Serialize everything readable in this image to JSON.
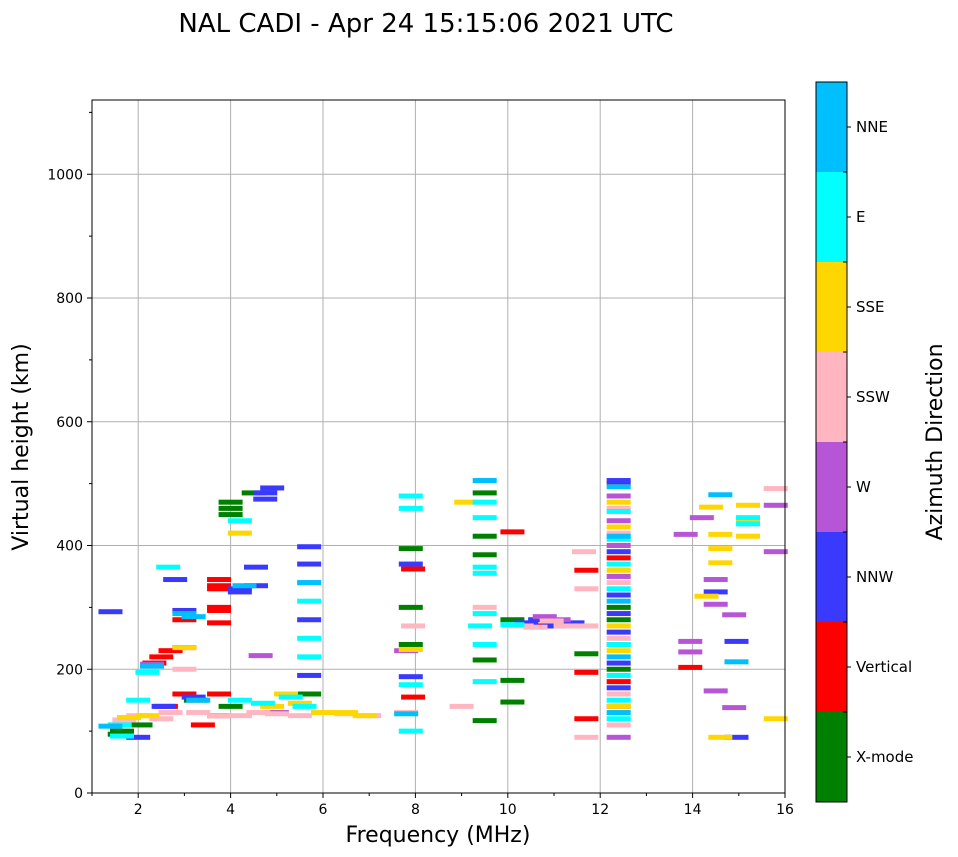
{
  "chart_data": {
    "type": "scatter",
    "title": "NAL CADI - Apr 24 15:15:06 2021 UTC",
    "xlabel": "Frequency (MHz)",
    "ylabel": "Virtual height (km)",
    "xlim": [
      1,
      16
    ],
    "ylim": [
      0,
      1120
    ],
    "xticks": [
      2,
      4,
      6,
      8,
      10,
      12,
      14,
      16
    ],
    "yticks": [
      0,
      200,
      400,
      600,
      800,
      1000
    ],
    "grid": true,
    "colorbar": {
      "label": "Azimuth Direction",
      "categories": [
        {
          "name": "X-mode",
          "color": "#008000"
        },
        {
          "name": "Vertical",
          "color": "#ff0000"
        },
        {
          "name": "NNW",
          "color": "#3a3aff"
        },
        {
          "name": "W",
          "color": "#b656d6"
        },
        {
          "name": "SSW",
          "color": "#ffb6c1"
        },
        {
          "name": "SSE",
          "color": "#ffd700"
        },
        {
          "name": "E",
          "color": "#00ffff"
        },
        {
          "name": "NNE",
          "color": "#00bfff"
        }
      ]
    },
    "series": [
      {
        "name": "X-mode",
        "points": [
          [
            1.6,
            95
          ],
          [
            1.65,
            100
          ],
          [
            2.05,
            110
          ],
          [
            3.25,
            150
          ],
          [
            4.0,
            470
          ],
          [
            4.0,
            460
          ],
          [
            4.0,
            450
          ],
          [
            4.0,
            140
          ],
          [
            4.5,
            485
          ],
          [
            5.7,
            160
          ],
          [
            7.9,
            395
          ],
          [
            7.9,
            300
          ],
          [
            7.9,
            240
          ],
          [
            9.5,
            485
          ],
          [
            9.5,
            415
          ],
          [
            9.5,
            385
          ],
          [
            9.5,
            215
          ],
          [
            9.5,
            117
          ],
          [
            10.1,
            280
          ],
          [
            10.1,
            182
          ],
          [
            10.1,
            147
          ],
          [
            11.7,
            225
          ],
          [
            12.4,
            300
          ],
          [
            12.4,
            280
          ],
          [
            12.4,
            200
          ]
        ]
      },
      {
        "name": "Vertical",
        "points": [
          [
            2.35,
            210
          ],
          [
            2.5,
            220
          ],
          [
            2.7,
            230
          ],
          [
            3.0,
            235
          ],
          [
            3.0,
            280
          ],
          [
            3.4,
            110
          ],
          [
            3.75,
            345
          ],
          [
            3.75,
            335
          ],
          [
            3.75,
            330
          ],
          [
            3.75,
            300
          ],
          [
            3.75,
            295
          ],
          [
            3.75,
            275
          ],
          [
            3.75,
            160
          ],
          [
            3.75,
            125
          ],
          [
            3.0,
            160
          ],
          [
            2.6,
            140
          ],
          [
            7.95,
            362
          ],
          [
            7.95,
            155
          ],
          [
            10.1,
            422
          ],
          [
            10.9,
            270
          ],
          [
            11.7,
            360
          ],
          [
            11.7,
            195
          ],
          [
            11.7,
            120
          ],
          [
            12.4,
            500
          ],
          [
            12.4,
            380
          ],
          [
            12.4,
            180
          ],
          [
            13.95,
            203
          ]
        ]
      },
      {
        "name": "NNW",
        "points": [
          [
            1.4,
            293
          ],
          [
            2.0,
            90
          ],
          [
            2.55,
            140
          ],
          [
            2.8,
            345
          ],
          [
            3.0,
            295
          ],
          [
            3.2,
            155
          ],
          [
            4.2,
            330
          ],
          [
            4.2,
            325
          ],
          [
            4.55,
            365
          ],
          [
            4.55,
            335
          ],
          [
            4.75,
            475
          ],
          [
            4.75,
            485
          ],
          [
            4.9,
            493
          ],
          [
            5.7,
            398
          ],
          [
            5.7,
            370
          ],
          [
            5.7,
            280
          ],
          [
            5.7,
            190
          ],
          [
            7.9,
            370
          ],
          [
            7.9,
            188
          ],
          [
            10.4,
            275
          ],
          [
            10.7,
            280
          ],
          [
            11.0,
            270
          ],
          [
            11.4,
            275
          ],
          [
            12.4,
            505
          ],
          [
            12.4,
            390
          ],
          [
            12.4,
            320
          ],
          [
            12.4,
            290
          ],
          [
            12.4,
            260
          ],
          [
            12.4,
            210
          ],
          [
            12.4,
            170
          ],
          [
            14.5,
            325
          ],
          [
            14.95,
            245
          ],
          [
            14.95,
            90
          ]
        ]
      },
      {
        "name": "W",
        "points": [
          [
            2.3,
            208
          ],
          [
            4.65,
            222
          ],
          [
            5.0,
            130
          ],
          [
            7.8,
            230
          ],
          [
            10.8,
            285
          ],
          [
            11.1,
            280
          ],
          [
            12.4,
            480
          ],
          [
            12.4,
            440
          ],
          [
            12.4,
            400
          ],
          [
            12.4,
            350
          ],
          [
            12.4,
            240
          ],
          [
            12.4,
            140
          ],
          [
            12.4,
            90
          ],
          [
            13.85,
            418
          ],
          [
            13.95,
            245
          ],
          [
            13.95,
            228
          ],
          [
            14.2,
            445
          ],
          [
            14.5,
            345
          ],
          [
            14.5,
            305
          ],
          [
            14.5,
            165
          ],
          [
            14.9,
            288
          ],
          [
            14.9,
            138
          ],
          [
            15.8,
            390
          ],
          [
            15.8,
            465
          ]
        ]
      },
      {
        "name": "SSW",
        "points": [
          [
            1.7,
            118
          ],
          [
            2.0,
            125
          ],
          [
            2.5,
            120
          ],
          [
            2.7,
            130
          ],
          [
            3.0,
            200
          ],
          [
            3.3,
            130
          ],
          [
            3.75,
            125
          ],
          [
            4.2,
            125
          ],
          [
            4.6,
            130
          ],
          [
            5.0,
            128
          ],
          [
            5.5,
            125
          ],
          [
            6.0,
            130
          ],
          [
            6.5,
            128
          ],
          [
            7.0,
            125
          ],
          [
            7.8,
            130
          ],
          [
            7.95,
            270
          ],
          [
            9.0,
            140
          ],
          [
            9.5,
            300
          ],
          [
            10.3,
            270
          ],
          [
            10.6,
            268
          ],
          [
            10.95,
            278
          ],
          [
            11.25,
            270
          ],
          [
            11.65,
            390
          ],
          [
            11.7,
            330
          ],
          [
            11.7,
            270
          ],
          [
            11.7,
            90
          ],
          [
            12.4,
            460
          ],
          [
            12.4,
            420
          ],
          [
            12.4,
            340
          ],
          [
            12.4,
            250
          ],
          [
            12.4,
            160
          ],
          [
            12.4,
            110
          ],
          [
            15.8,
            492
          ]
        ]
      },
      {
        "name": "SSE",
        "points": [
          [
            1.8,
            122
          ],
          [
            2.2,
            125
          ],
          [
            3.0,
            235
          ],
          [
            4.2,
            420
          ],
          [
            4.9,
            140
          ],
          [
            5.2,
            160
          ],
          [
            5.5,
            145
          ],
          [
            6.0,
            130
          ],
          [
            6.5,
            130
          ],
          [
            6.9,
            125
          ],
          [
            7.9,
            232
          ],
          [
            9.1,
            470
          ],
          [
            12.4,
            470
          ],
          [
            12.4,
            430
          ],
          [
            12.4,
            360
          ],
          [
            12.4,
            270
          ],
          [
            12.4,
            230
          ],
          [
            12.4,
            140
          ],
          [
            14.3,
            318
          ],
          [
            14.4,
            462
          ],
          [
            14.6,
            418
          ],
          [
            14.6,
            395
          ],
          [
            14.6,
            372
          ],
          [
            14.6,
            90
          ],
          [
            15.2,
            465
          ],
          [
            15.2,
            440
          ],
          [
            15.2,
            415
          ],
          [
            15.8,
            120
          ]
        ]
      },
      {
        "name": "E",
        "points": [
          [
            1.6,
            110
          ],
          [
            1.65,
            92
          ],
          [
            2.0,
            150
          ],
          [
            2.2,
            195
          ],
          [
            2.65,
            365
          ],
          [
            4.2,
            440
          ],
          [
            4.2,
            150
          ],
          [
            4.7,
            145
          ],
          [
            5.3,
            155
          ],
          [
            5.6,
            140
          ],
          [
            5.7,
            340
          ],
          [
            5.7,
            310
          ],
          [
            5.7,
            250
          ],
          [
            5.7,
            220
          ],
          [
            7.9,
            480
          ],
          [
            7.9,
            460
          ],
          [
            7.9,
            175
          ],
          [
            7.9,
            100
          ],
          [
            9.4,
            270
          ],
          [
            9.5,
            470
          ],
          [
            9.5,
            445
          ],
          [
            9.5,
            365
          ],
          [
            9.5,
            355
          ],
          [
            9.5,
            290
          ],
          [
            9.5,
            240
          ],
          [
            9.5,
            180
          ],
          [
            10.1,
            272
          ],
          [
            12.4,
            455
          ],
          [
            12.4,
            410
          ],
          [
            12.4,
            370
          ],
          [
            12.4,
            330
          ],
          [
            12.4,
            240
          ],
          [
            12.4,
            190
          ],
          [
            12.4,
            150
          ],
          [
            12.4,
            120
          ],
          [
            15.2,
            435
          ],
          [
            15.2,
            445
          ]
        ]
      },
      {
        "name": "NNE",
        "points": [
          [
            1.4,
            108
          ],
          [
            2.3,
            205
          ],
          [
            3.0,
            290
          ],
          [
            3.2,
            285
          ],
          [
            3.3,
            150
          ],
          [
            4.3,
            335
          ],
          [
            5.7,
            340
          ],
          [
            7.8,
            128
          ],
          [
            9.5,
            505
          ],
          [
            12.4,
            495
          ],
          [
            12.4,
            415
          ],
          [
            12.4,
            310
          ],
          [
            12.4,
            220
          ],
          [
            12.4,
            130
          ],
          [
            14.6,
            482
          ],
          [
            14.95,
            212
          ]
        ]
      }
    ]
  }
}
